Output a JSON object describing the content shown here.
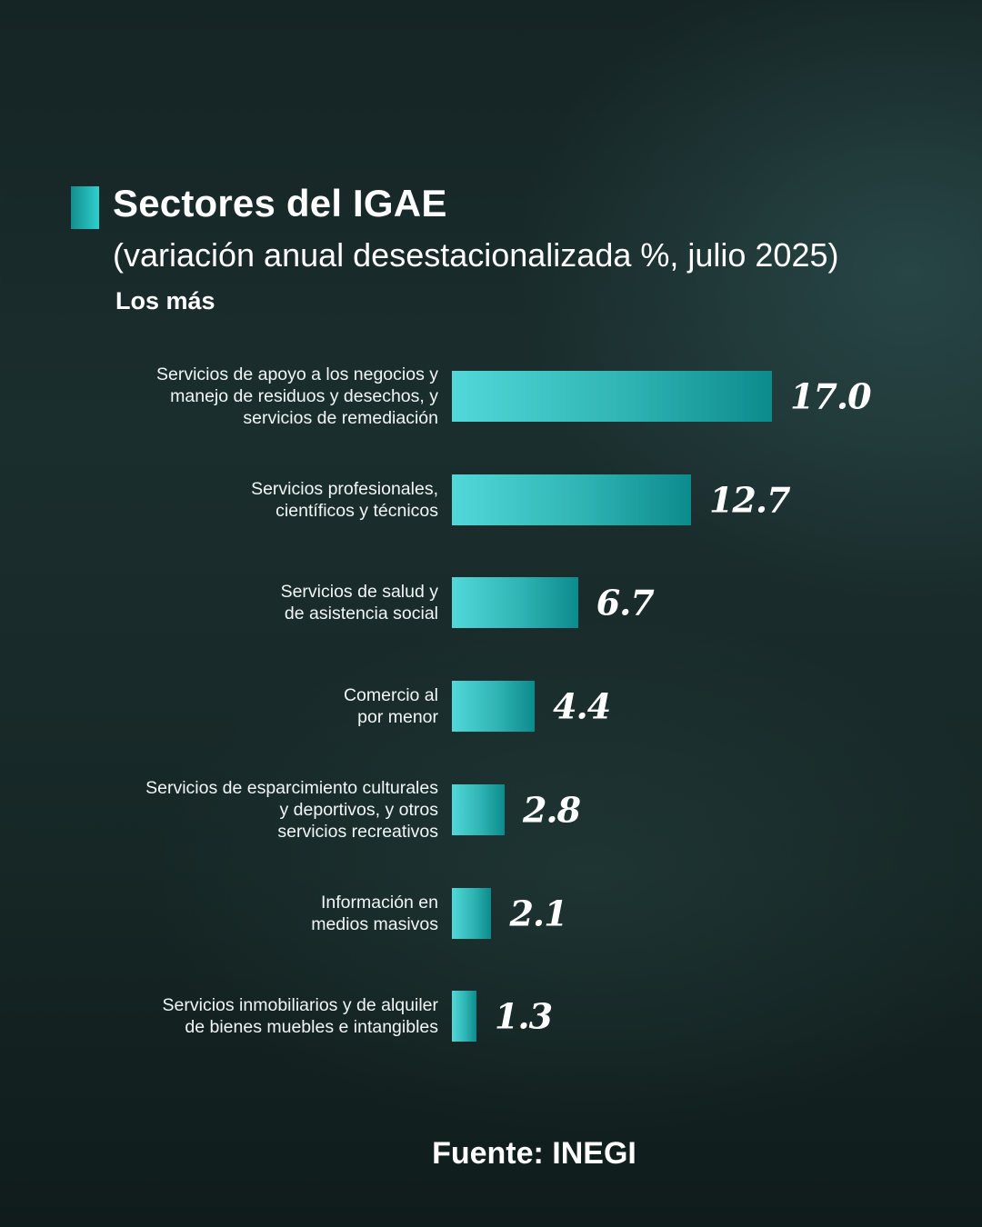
{
  "title": "Sectores del IGAE",
  "subtitle": "(variación anual desestacionalizada %, julio 2025)",
  "section_label": "Los más",
  "source": "Fuente: INEGI",
  "colors": {
    "bar_light": "#52d8d8",
    "bar_dark": "#0c8b8c",
    "background": "#162726",
    "text": "#ffffff"
  },
  "chart_data": {
    "type": "bar",
    "orientation": "horizontal",
    "title": "Sectores del IGAE",
    "subtitle": "(variación anual desestacionalizada %, julio 2025)",
    "categories": [
      "Servicios de apoyo a los negocios y\nmanejo de residuos y desechos, y\nservicios de remediación",
      "Servicios profesionales,\ncientíficos y técnicos",
      "Servicios de salud y\nde asistencia social",
      "Comercio al\npor menor",
      "Servicios de esparcimiento culturales\ny deportivos, y otros\nservicios recreativos",
      "Información en\nmedios masivos",
      "Servicios inmobiliarios y de alquiler\nde bienes muebles e intangibles"
    ],
    "values": [
      17.0,
      12.7,
      6.7,
      4.4,
      2.8,
      2.1,
      1.3
    ],
    "value_labels": [
      "17.0",
      "12.7",
      "6.7",
      "4.4",
      "2.8",
      "2.1",
      "1.3"
    ],
    "xlim": [
      0,
      17.0
    ],
    "grid": false,
    "legend": "none"
  }
}
